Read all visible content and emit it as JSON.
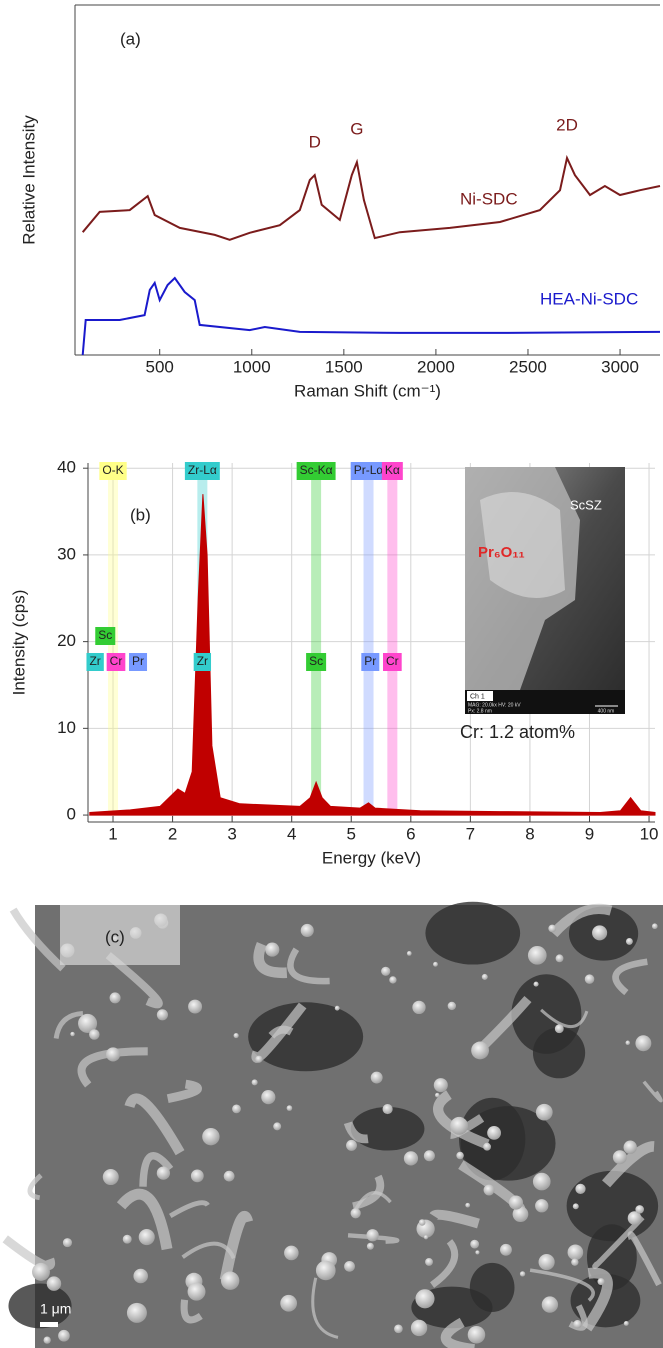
{
  "chart_data": [
    {
      "type": "line",
      "panel_label": "(a)",
      "x_label": "Raman Shift (cm⁻¹)",
      "y_label": "Relative Intensity",
      "xlim": [
        40,
        3217
      ],
      "xticks": [
        500,
        1000,
        1500,
        2000,
        2500,
        3000
      ],
      "ylim": [
        0,
        10
      ],
      "series": [
        {
          "name": "Ni-SDC",
          "color": "#7b1c1c",
          "x": [
            82,
            174,
            337,
            435,
            473,
            609,
            799,
            880,
            989,
            1152,
            1261,
            1315,
            1342,
            1380,
            1478,
            1543,
            1571,
            1609,
            1668,
            1804,
            2076,
            2348,
            2565,
            2674,
            2712,
            2755,
            2837,
            2918,
            3000,
            3109,
            3217
          ],
          "values": [
            3.51,
            4.09,
            4.14,
            4.54,
            4.0,
            3.63,
            3.43,
            3.29,
            3.49,
            3.71,
            4.14,
            5.0,
            5.14,
            4.29,
            3.86,
            5.14,
            5.51,
            4.43,
            3.34,
            3.51,
            3.63,
            3.8,
            4.14,
            4.71,
            5.63,
            5.14,
            4.57,
            4.83,
            4.57,
            4.71,
            4.83
          ]
        },
        {
          "name": "HEA-Ni-SDC",
          "color": "#1a1acc",
          "x": [
            82,
            98,
            283,
            418,
            446,
            473,
            500,
            543,
            582,
            636,
            690,
            717,
            989,
            1071,
            1261,
            1804,
            2348,
            3217
          ],
          "values": [
            0,
            1.0,
            1.0,
            1.14,
            1.86,
            2.06,
            1.57,
            2.0,
            2.2,
            1.8,
            1.57,
            0.86,
            0.71,
            0.8,
            0.66,
            0.63,
            0.63,
            0.66
          ]
        }
      ],
      "peak_labels": [
        {
          "text": "D",
          "x": 1342
        },
        {
          "text": "G",
          "x": 1571
        },
        {
          "text": "2D",
          "x": 2712
        }
      ]
    },
    {
      "type": "area",
      "panel_label": "(b)",
      "x_label": "Energy (keV)",
      "y_label": "Intensity (cps)",
      "color": "#c00000",
      "grid": true,
      "xlim": [
        0.58,
        10.1
      ],
      "xticks": [
        1,
        2,
        3,
        4,
        5,
        6,
        7,
        8,
        9,
        10
      ],
      "ylim": [
        -0.8,
        40.6
      ],
      "yticks": [
        0,
        10,
        20,
        30,
        40
      ],
      "x": [
        0.61,
        1.29,
        1.79,
        2.09,
        2.21,
        2.33,
        2.43,
        2.51,
        2.58,
        2.66,
        2.8,
        3.13,
        4.14,
        4.31,
        4.41,
        4.51,
        4.65,
        5.15,
        5.29,
        5.4,
        6.16,
        7.5,
        9.18,
        9.52,
        9.69,
        9.86,
        10.1
      ],
      "values": [
        0.3,
        0.6,
        1.0,
        3,
        2.5,
        5,
        25,
        37,
        30,
        8,
        2,
        1.3,
        1.0,
        2,
        3.8,
        2,
        1,
        0.8,
        1.4,
        0.8,
        0.5,
        0.4,
        0.3,
        0.5,
        2.0,
        0.5,
        0.3
      ],
      "line_markers": [
        {
          "label": "O-K",
          "energy": 1.0,
          "color": "#ffff88"
        },
        {
          "label": "Zr-Lα",
          "energy": 2.5,
          "color": "#33cccc"
        },
        {
          "label": "Sc-Kα",
          "energy": 4.41,
          "color": "#33cc33"
        },
        {
          "label": "Pr-Lα",
          "energy": 5.29,
          "color": "#7799ff"
        },
        {
          "label": "Kα",
          "energy": 5.69,
          "color": "#ff44cc"
        }
      ],
      "element_labels": [
        {
          "label": "Zr",
          "energy": 0.7,
          "color": "#33cccc"
        },
        {
          "label": "Sc",
          "energy": 0.87,
          "color": "#33cc33"
        },
        {
          "label": "Cr",
          "energy": 1.05,
          "color": "#ff44cc"
        },
        {
          "label": "Pr",
          "energy": 1.42,
          "color": "#7799ff"
        },
        {
          "label": "Zr",
          "energy": 2.5,
          "color": "#33cccc"
        },
        {
          "label": "Sc",
          "energy": 4.41,
          "color": "#33cc33"
        },
        {
          "label": "Pr",
          "energy": 5.32,
          "color": "#7799ff"
        },
        {
          "label": "Cr",
          "energy": 5.69,
          "color": "#ff44cc"
        }
      ],
      "annotation": "Cr: 1.2 atom%",
      "inset": {
        "phase_1": "ScSZ",
        "phase_2": "Pr₆O₁₁",
        "channel": "Ch 1",
        "info_1": "MAG: 20.0kx  HV: 20 kV",
        "info_2": "Px: 2.8 nm",
        "scale": "400 nm"
      }
    }
  ],
  "image_c": {
    "panel_label": "(c)",
    "scale_bar": "1 μm"
  }
}
